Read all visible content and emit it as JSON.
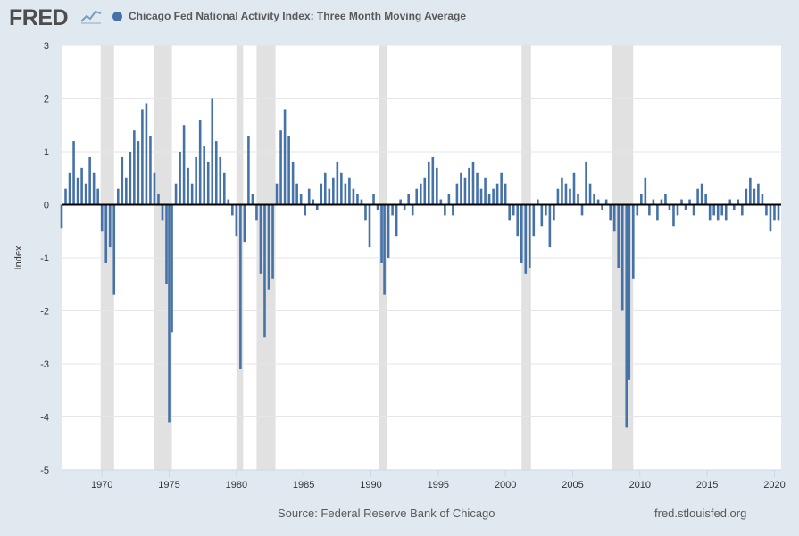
{
  "header": {
    "logo_text": "FRED",
    "logo_icon": "trend-graph-icon",
    "series_title": "Chicago Fed National Activity Index: Three Month Moving Average"
  },
  "footer": {
    "source": "Source: Federal Reserve Bank of Chicago",
    "site": "fred.stlouisfed.org"
  },
  "colors": {
    "series": "#4572a7",
    "recession": "#e1e1e1",
    "background": "#e1e9f0",
    "plot": "#ffffff"
  },
  "chart_data": {
    "type": "bar",
    "title": "Chicago Fed National Activity Index: Three Month Moving Average",
    "ylabel": "Index",
    "xlabel": "",
    "ylim": [
      -5,
      3
    ],
    "xlim": [
      1967.0,
      2020.5
    ],
    "y_ticks": [
      "3",
      "2",
      "1",
      "0",
      "-1",
      "-2",
      "-3",
      "-4",
      "-5"
    ],
    "x_ticks": [
      "1970",
      "1975",
      "1980",
      "1985",
      "1990",
      "1995",
      "2000",
      "2005",
      "2010",
      "2015",
      "2020"
    ],
    "grid": true,
    "legend": "top-left",
    "recessions": [
      [
        1969.9,
        1970.9
      ],
      [
        1973.9,
        1975.2
      ],
      [
        1980.0,
        1980.5
      ],
      [
        1981.5,
        1982.9
      ],
      [
        1990.6,
        1991.2
      ],
      [
        2001.2,
        2001.9
      ],
      [
        2007.9,
        2009.5
      ]
    ],
    "series": [
      {
        "name": "Chicago Fed National Activity Index: Three Month Moving Average",
        "points": [
          [
            1967.0,
            -0.45
          ],
          [
            1967.3,
            0.3
          ],
          [
            1967.6,
            0.6
          ],
          [
            1967.9,
            1.2
          ],
          [
            1968.2,
            0.5
          ],
          [
            1968.5,
            0.7
          ],
          [
            1968.8,
            0.4
          ],
          [
            1969.1,
            0.9
          ],
          [
            1969.4,
            0.6
          ],
          [
            1969.7,
            0.3
          ],
          [
            1970.0,
            -0.5
          ],
          [
            1970.3,
            -1.1
          ],
          [
            1970.6,
            -0.8
          ],
          [
            1970.9,
            -1.7
          ],
          [
            1971.2,
            0.3
          ],
          [
            1971.5,
            0.9
          ],
          [
            1971.8,
            0.5
          ],
          [
            1972.1,
            1.0
          ],
          [
            1972.4,
            1.4
          ],
          [
            1972.7,
            1.2
          ],
          [
            1973.0,
            1.8
          ],
          [
            1973.3,
            1.9
          ],
          [
            1973.6,
            1.3
          ],
          [
            1973.9,
            0.6
          ],
          [
            1974.2,
            0.2
          ],
          [
            1974.5,
            -0.3
          ],
          [
            1974.8,
            -1.5
          ],
          [
            1975.0,
            -4.1
          ],
          [
            1975.2,
            -2.4
          ],
          [
            1975.5,
            0.4
          ],
          [
            1975.8,
            1.0
          ],
          [
            1976.1,
            1.5
          ],
          [
            1976.4,
            0.7
          ],
          [
            1976.7,
            0.4
          ],
          [
            1977.0,
            0.9
          ],
          [
            1977.3,
            1.6
          ],
          [
            1977.6,
            1.1
          ],
          [
            1977.9,
            0.8
          ],
          [
            1978.2,
            2.0
          ],
          [
            1978.5,
            1.2
          ],
          [
            1978.8,
            0.9
          ],
          [
            1979.1,
            0.6
          ],
          [
            1979.4,
            0.1
          ],
          [
            1979.7,
            -0.2
          ],
          [
            1980.0,
            -0.6
          ],
          [
            1980.3,
            -3.1
          ],
          [
            1980.6,
            -0.7
          ],
          [
            1980.9,
            1.3
          ],
          [
            1981.2,
            0.2
          ],
          [
            1981.5,
            -0.3
          ],
          [
            1981.8,
            -1.3
          ],
          [
            1982.1,
            -2.5
          ],
          [
            1982.4,
            -1.6
          ],
          [
            1982.7,
            -1.4
          ],
          [
            1983.0,
            0.4
          ],
          [
            1983.3,
            1.4
          ],
          [
            1983.6,
            1.8
          ],
          [
            1983.9,
            1.3
          ],
          [
            1984.2,
            0.8
          ],
          [
            1984.5,
            0.4
          ],
          [
            1984.8,
            0.2
          ],
          [
            1985.1,
            -0.2
          ],
          [
            1985.4,
            0.3
          ],
          [
            1985.7,
            0.1
          ],
          [
            1986.0,
            -0.1
          ],
          [
            1986.3,
            0.4
          ],
          [
            1986.6,
            0.6
          ],
          [
            1986.9,
            0.3
          ],
          [
            1987.2,
            0.5
          ],
          [
            1987.5,
            0.8
          ],
          [
            1987.8,
            0.6
          ],
          [
            1988.1,
            0.4
          ],
          [
            1988.4,
            0.5
          ],
          [
            1988.7,
            0.3
          ],
          [
            1989.0,
            0.2
          ],
          [
            1989.3,
            0.1
          ],
          [
            1989.6,
            -0.3
          ],
          [
            1989.9,
            -0.8
          ],
          [
            1990.2,
            0.2
          ],
          [
            1990.5,
            -0.1
          ],
          [
            1990.8,
            -1.1
          ],
          [
            1991.0,
            -1.7
          ],
          [
            1991.3,
            -1.0
          ],
          [
            1991.6,
            -0.2
          ],
          [
            1991.9,
            -0.6
          ],
          [
            1992.2,
            0.1
          ],
          [
            1992.5,
            -0.1
          ],
          [
            1992.8,
            0.2
          ],
          [
            1993.1,
            -0.2
          ],
          [
            1993.4,
            0.3
          ],
          [
            1993.7,
            0.4
          ],
          [
            1994.0,
            0.5
          ],
          [
            1994.3,
            0.8
          ],
          [
            1994.6,
            0.9
          ],
          [
            1994.9,
            0.7
          ],
          [
            1995.2,
            0.1
          ],
          [
            1995.5,
            -0.2
          ],
          [
            1995.8,
            0.2
          ],
          [
            1996.1,
            -0.2
          ],
          [
            1996.4,
            0.4
          ],
          [
            1996.7,
            0.6
          ],
          [
            1997.0,
            0.5
          ],
          [
            1997.3,
            0.7
          ],
          [
            1997.6,
            0.8
          ],
          [
            1997.9,
            0.6
          ],
          [
            1998.2,
            0.3
          ],
          [
            1998.5,
            0.5
          ],
          [
            1998.8,
            0.2
          ],
          [
            1999.1,
            0.3
          ],
          [
            1999.4,
            0.4
          ],
          [
            1999.7,
            0.6
          ],
          [
            2000.0,
            0.4
          ],
          [
            2000.3,
            -0.3
          ],
          [
            2000.6,
            -0.2
          ],
          [
            2000.9,
            -0.6
          ],
          [
            2001.2,
            -1.1
          ],
          [
            2001.5,
            -1.3
          ],
          [
            2001.8,
            -1.2
          ],
          [
            2002.1,
            -0.6
          ],
          [
            2002.4,
            0.1
          ],
          [
            2002.7,
            -0.4
          ],
          [
            2003.0,
            -0.2
          ],
          [
            2003.3,
            -0.8
          ],
          [
            2003.6,
            -0.3
          ],
          [
            2003.9,
            0.3
          ],
          [
            2004.2,
            0.5
          ],
          [
            2004.5,
            0.4
          ],
          [
            2004.8,
            0.3
          ],
          [
            2005.1,
            0.6
          ],
          [
            2005.4,
            0.2
          ],
          [
            2005.7,
            -0.2
          ],
          [
            2006.0,
            0.8
          ],
          [
            2006.3,
            0.4
          ],
          [
            2006.6,
            0.2
          ],
          [
            2006.9,
            0.1
          ],
          [
            2007.2,
            -0.1
          ],
          [
            2007.5,
            0.1
          ],
          [
            2007.8,
            -0.3
          ],
          [
            2008.1,
            -0.5
          ],
          [
            2008.4,
            -1.2
          ],
          [
            2008.7,
            -2.0
          ],
          [
            2009.0,
            -4.2
          ],
          [
            2009.2,
            -3.3
          ],
          [
            2009.5,
            -1.4
          ],
          [
            2009.8,
            -0.2
          ],
          [
            2010.1,
            0.2
          ],
          [
            2010.4,
            0.5
          ],
          [
            2010.7,
            -0.2
          ],
          [
            2011.0,
            0.1
          ],
          [
            2011.3,
            -0.3
          ],
          [
            2011.6,
            0.1
          ],
          [
            2011.9,
            0.2
          ],
          [
            2012.2,
            -0.1
          ],
          [
            2012.5,
            -0.4
          ],
          [
            2012.8,
            -0.2
          ],
          [
            2013.1,
            0.1
          ],
          [
            2013.4,
            -0.1
          ],
          [
            2013.7,
            0.1
          ],
          [
            2014.0,
            -0.2
          ],
          [
            2014.3,
            0.3
          ],
          [
            2014.6,
            0.4
          ],
          [
            2014.9,
            0.2
          ],
          [
            2015.2,
            -0.3
          ],
          [
            2015.5,
            -0.2
          ],
          [
            2015.8,
            -0.3
          ],
          [
            2016.1,
            -0.2
          ],
          [
            2016.4,
            -0.3
          ],
          [
            2016.7,
            0.1
          ],
          [
            2017.0,
            -0.1
          ],
          [
            2017.3,
            0.1
          ],
          [
            2017.6,
            -0.2
          ],
          [
            2017.9,
            0.3
          ],
          [
            2018.2,
            0.5
          ],
          [
            2018.5,
            0.3
          ],
          [
            2018.8,
            0.4
          ],
          [
            2019.1,
            0.2
          ],
          [
            2019.4,
            -0.2
          ],
          [
            2019.7,
            -0.5
          ],
          [
            2020.0,
            -0.3
          ],
          [
            2020.3,
            -0.3
          ]
        ]
      }
    ]
  }
}
